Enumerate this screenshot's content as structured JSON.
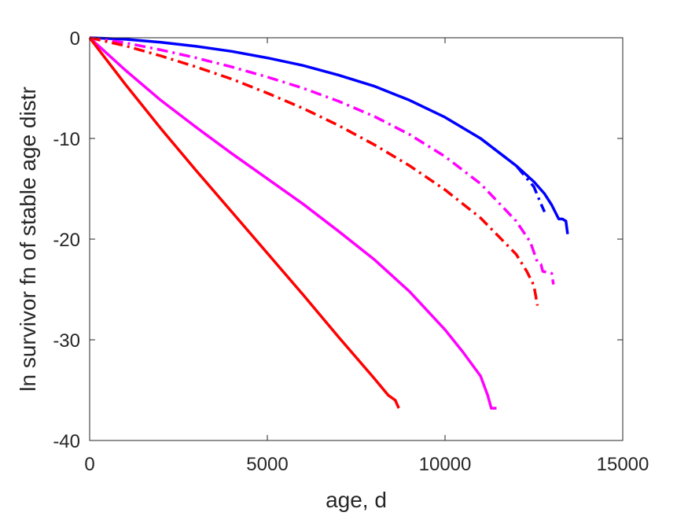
{
  "chart_data": {
    "type": "line",
    "title": "",
    "xlabel": "age, d",
    "ylabel": "ln survivor fn of stable age distr",
    "xlim": [
      0,
      15000
    ],
    "ylim": [
      -40,
      0
    ],
    "xticks": [
      0,
      5000,
      10000,
      15000
    ],
    "yticks": [
      -40,
      -30,
      -20,
      -10,
      0
    ],
    "xtick_labels": [
      "0",
      "5000",
      "10000",
      "15000"
    ],
    "ytick_labels": [
      "-40",
      "-30",
      "-20",
      "-10",
      "0"
    ],
    "grid": false,
    "legend": "none",
    "series": [
      {
        "color": "#0000ff",
        "style": "solid",
        "x": [
          0,
          1000,
          2000,
          3000,
          4000,
          5000,
          6000,
          7000,
          8000,
          9000,
          10000,
          11000,
          12000,
          12500,
          12800,
          13000,
          13200,
          13300,
          13400,
          13450
        ],
        "y": [
          0,
          -0.15,
          -0.45,
          -0.85,
          -1.35,
          -2.0,
          -2.75,
          -3.7,
          -4.8,
          -6.2,
          -7.9,
          -10.0,
          -12.7,
          -14.3,
          -15.5,
          -16.6,
          -18.0,
          -18.0,
          -18.2,
          -19.5
        ]
      },
      {
        "color": "#0000ff",
        "style": "dashdot",
        "x": [
          11000,
          12000,
          12500,
          12700,
          12800
        ],
        "y": [
          -10.0,
          -12.7,
          -14.8,
          -16.5,
          -17.3
        ]
      },
      {
        "color": "#ff00ff",
        "style": "dashdot",
        "x": [
          0,
          1000,
          2000,
          3000,
          4000,
          5000,
          6000,
          7000,
          8000,
          9000,
          10000,
          11000,
          12000,
          12400,
          12600,
          12700,
          12750,
          13000,
          13050
        ],
        "y": [
          0,
          -0.5,
          -1.2,
          -2.0,
          -2.9,
          -3.9,
          -5.0,
          -6.3,
          -7.8,
          -9.6,
          -11.8,
          -14.5,
          -18.2,
          -20.3,
          -22.3,
          -22.5,
          -23.2,
          -23.4,
          -24.5
        ]
      },
      {
        "color": "#ff0000",
        "style": "dashdot",
        "x": [
          0,
          1000,
          2000,
          3000,
          4000,
          5000,
          6000,
          7000,
          8000,
          9000,
          10000,
          11000,
          12000,
          12300,
          12500,
          12600
        ],
        "y": [
          0,
          -0.8,
          -1.8,
          -2.9,
          -4.1,
          -5.5,
          -7.0,
          -8.7,
          -10.6,
          -12.7,
          -15.1,
          -17.9,
          -21.5,
          -23.2,
          -24.6,
          -26.6
        ]
      },
      {
        "color": "#ff00ff",
        "style": "solid",
        "x": [
          0,
          1000,
          2000,
          3000,
          4000,
          5000,
          6000,
          7000,
          8000,
          9000,
          10000,
          10500,
          11000,
          11200,
          11300,
          11450
        ],
        "y": [
          0,
          -3.2,
          -6.2,
          -8.9,
          -11.5,
          -14.0,
          -16.5,
          -19.2,
          -22.0,
          -25.2,
          -29.0,
          -31.2,
          -33.6,
          -35.5,
          -36.8,
          -36.8
        ]
      },
      {
        "color": "#ff0000",
        "style": "solid",
        "x": [
          0,
          1000,
          2000,
          3000,
          4000,
          5000,
          6000,
          7000,
          8000,
          8400,
          8600,
          8700
        ],
        "y": [
          0,
          -4.6,
          -9.0,
          -13.2,
          -17.3,
          -21.4,
          -25.5,
          -29.7,
          -33.8,
          -35.5,
          -36.0,
          -36.8
        ]
      }
    ]
  }
}
